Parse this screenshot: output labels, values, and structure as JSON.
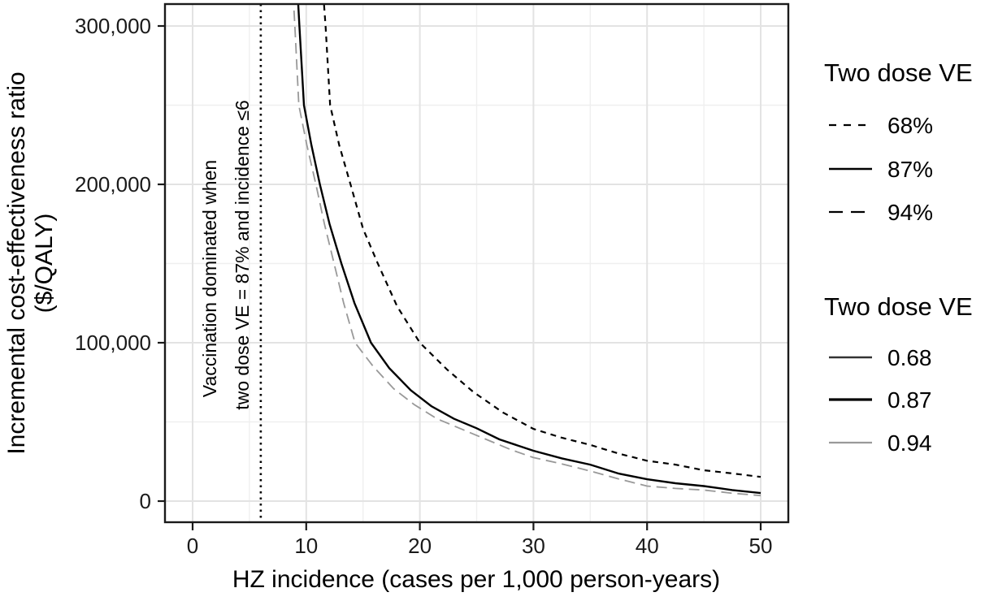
{
  "chart_data": {
    "type": "line",
    "title": "",
    "xlabel": "HZ incidence (cases per 1,000 person-years)",
    "ylabel_line1": "Incremental cost-effectiveness ratio",
    "ylabel_line2": "($/QALY)",
    "x_ticks": {
      "values": [
        0,
        10,
        20,
        30,
        40,
        50
      ],
      "labels": [
        "0",
        "10",
        "20",
        "30",
        "40",
        "50"
      ]
    },
    "y_ticks": {
      "values": [
        0,
        100000,
        200000,
        300000
      ],
      "labels": [
        "0",
        "100,000",
        "200,000",
        "300,000"
      ]
    },
    "x_minor": [
      5,
      15,
      25,
      35,
      45
    ],
    "y_minor": [
      50000,
      150000,
      250000
    ],
    "xlim": [
      -2.4,
      52.4
    ],
    "ylim": [
      -13300,
      313800
    ],
    "grid": true,
    "legend_position": "right",
    "panel_border_color": "#1a1a1a",
    "grid_major_color": "#e3e3e3",
    "grid_minor_color": "#efefef",
    "vline": {
      "x": 6,
      "style": "dotted",
      "color": "#000000"
    },
    "annotation": {
      "line1": "Vaccination dominated when",
      "line2": "two dose VE = 87% and incidence ≤6",
      "rotation": 90
    },
    "series": [
      {
        "name": "68%",
        "ve": "0.68",
        "linetype": "dashed",
        "color": "#000000",
        "width": 2.2,
        "points": [
          [
            11.5,
            320000
          ],
          [
            11.7,
            300000
          ],
          [
            12.1,
            250000
          ],
          [
            12.9,
            225000
          ],
          [
            13.9,
            200000
          ],
          [
            15.0,
            172000
          ],
          [
            16.3,
            150000
          ],
          [
            18.0,
            123000
          ],
          [
            20.0,
            100000
          ],
          [
            22.4,
            83000
          ],
          [
            24.7,
            69000
          ],
          [
            27.3,
            56000
          ],
          [
            30,
            45600
          ],
          [
            32.5,
            40000
          ],
          [
            35,
            35500
          ],
          [
            37.5,
            30000
          ],
          [
            40,
            25500
          ],
          [
            42.5,
            23000
          ],
          [
            45,
            19500
          ],
          [
            47.5,
            17500
          ],
          [
            50,
            15300
          ]
        ]
      },
      {
        "name": "87%",
        "ve": "0.87",
        "linetype": "solid",
        "color": "#000000",
        "width": 2.4,
        "points": [
          [
            9.25,
            320000
          ],
          [
            9.4,
            300000
          ],
          [
            9.8,
            250000
          ],
          [
            10.45,
            225000
          ],
          [
            11.2,
            200000
          ],
          [
            12.05,
            175000
          ],
          [
            13.1,
            150000
          ],
          [
            14.25,
            125000
          ],
          [
            15.7,
            100000
          ],
          [
            17.3,
            84000
          ],
          [
            19.2,
            70000
          ],
          [
            21,
            60000
          ],
          [
            23,
            52000
          ],
          [
            25,
            46000
          ],
          [
            27,
            39000
          ],
          [
            30,
            31800
          ],
          [
            32.5,
            27000
          ],
          [
            35,
            23000
          ],
          [
            37.5,
            17400
          ],
          [
            40,
            13800
          ],
          [
            42.5,
            11300
          ],
          [
            45,
            9500
          ],
          [
            47.5,
            7000
          ],
          [
            50,
            5100
          ]
        ]
      },
      {
        "name": "94%",
        "ve": "0.94",
        "linetype": "longdash",
        "color": "#999999",
        "width": 1.8,
        "points": [
          [
            8.85,
            320000
          ],
          [
            9.0,
            300000
          ],
          [
            9.35,
            250000
          ],
          [
            10.05,
            225000
          ],
          [
            10.85,
            200000
          ],
          [
            11.6,
            175000
          ],
          [
            12.45,
            150000
          ],
          [
            13.3,
            125000
          ],
          [
            14.3,
            100000
          ],
          [
            15.9,
            85000
          ],
          [
            17.7,
            71000
          ],
          [
            19.5,
            61000
          ],
          [
            21.5,
            52000
          ],
          [
            23.5,
            46000
          ],
          [
            25.5,
            40000
          ],
          [
            28,
            32500
          ],
          [
            30,
            27500
          ],
          [
            32.5,
            23500
          ],
          [
            35,
            19000
          ],
          [
            37.5,
            14000
          ],
          [
            40,
            9500
          ],
          [
            42.5,
            8000
          ],
          [
            45,
            7000
          ],
          [
            47.5,
            5000
          ],
          [
            50,
            3500
          ]
        ]
      }
    ],
    "legends": [
      {
        "title": "Two dose VE",
        "entries": [
          {
            "label": "68%",
            "linetype": "dashed",
            "color": "#000000",
            "width": 2.2
          },
          {
            "label": "87%",
            "linetype": "solid",
            "color": "#000000",
            "width": 2.4
          },
          {
            "label": "94%",
            "linetype": "longdash",
            "color": "#000000",
            "width": 2.2
          }
        ]
      },
      {
        "title": "Two dose VE",
        "entries": [
          {
            "label": "0.68",
            "linetype": "solid",
            "color": "#333333",
            "width": 2.5
          },
          {
            "label": "0.87",
            "linetype": "solid",
            "color": "#000000",
            "width": 3.2
          },
          {
            "label": "0.94",
            "linetype": "solid",
            "color": "#999999",
            "width": 2.2
          }
        ]
      }
    ]
  }
}
